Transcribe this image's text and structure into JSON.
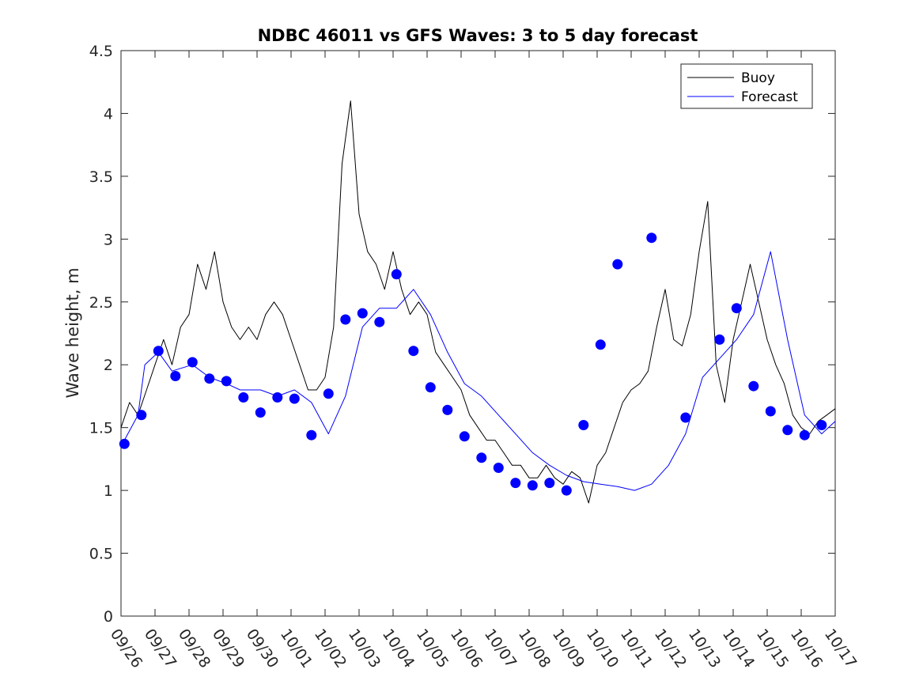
{
  "chart_data": {
    "type": "line",
    "title": "NDBC 46011 vs GFS Waves: 3 to 5 day forecast",
    "xlabel": "",
    "ylabel": "Wave height, m",
    "ylim": [
      0,
      4.5
    ],
    "yticks": [
      0,
      0.5,
      1,
      1.5,
      2,
      2.5,
      3,
      3.5,
      4,
      4.5
    ],
    "ytick_labels": [
      "0",
      "0.5",
      "1",
      "1.5",
      "2",
      "2.5",
      "3",
      "3.5",
      "4",
      "4.5"
    ],
    "xlim": [
      0,
      21
    ],
    "xtick_labels": [
      "09/26",
      "09/27",
      "09/28",
      "09/29",
      "09/30",
      "10/01",
      "10/02",
      "10/03",
      "10/04",
      "10/05",
      "10/06",
      "10/07",
      "10/08",
      "10/09",
      "10/10",
      "10/11",
      "10/12",
      "10/13",
      "10/14",
      "10/15",
      "10/16",
      "10/17"
    ],
    "legend": {
      "position": "top-right",
      "entries": [
        "Buoy",
        "Forecast"
      ]
    },
    "colors": {
      "buoy": "#000000",
      "forecast": "#0000ff",
      "axis": "#262626"
    },
    "series": [
      {
        "name": "Buoy",
        "x": [
          0,
          0.25,
          0.5,
          0.75,
          1,
          1.25,
          1.5,
          1.75,
          2,
          2.25,
          2.5,
          2.75,
          3,
          3.25,
          3.5,
          3.75,
          4,
          4.25,
          4.5,
          4.75,
          5,
          5.25,
          5.5,
          5.75,
          6,
          6.25,
          6.5,
          6.75,
          7,
          7.25,
          7.5,
          7.75,
          8,
          8.25,
          8.5,
          8.75,
          9,
          9.25,
          9.5,
          9.75,
          10,
          10.25,
          10.5,
          10.75,
          11,
          11.25,
          11.5,
          11.75,
          12,
          12.25,
          12.5,
          12.75,
          13,
          13.25,
          13.5,
          13.75,
          14,
          14.25,
          14.5,
          14.75,
          15,
          15.25,
          15.5,
          15.75,
          16,
          16.25,
          16.5,
          16.75,
          17,
          17.25,
          17.5,
          17.75,
          18,
          18.25,
          18.5,
          18.75,
          19,
          19.25,
          19.5,
          19.75,
          20,
          20.25,
          20.5,
          20.75,
          21
        ],
        "y": [
          1.5,
          1.7,
          1.6,
          1.8,
          2.0,
          2.2,
          2.0,
          2.3,
          2.4,
          2.8,
          2.6,
          2.9,
          2.5,
          2.3,
          2.2,
          2.3,
          2.2,
          2.4,
          2.5,
          2.4,
          2.2,
          2.0,
          1.8,
          1.8,
          1.9,
          2.3,
          3.6,
          4.1,
          3.2,
          2.9,
          2.8,
          2.6,
          2.9,
          2.6,
          2.4,
          2.5,
          2.4,
          2.1,
          2.0,
          1.9,
          1.8,
          1.6,
          1.5,
          1.4,
          1.4,
          1.3,
          1.2,
          1.2,
          1.1,
          1.1,
          1.2,
          1.1,
          1.05,
          1.15,
          1.1,
          0.9,
          1.2,
          1.3,
          1.5,
          1.7,
          1.8,
          1.85,
          1.95,
          2.3,
          2.6,
          2.2,
          2.15,
          2.4,
          2.9,
          3.3,
          2.0,
          1.7,
          2.2,
          2.5,
          2.8,
          2.5,
          2.2,
          2.0,
          1.85,
          1.6,
          1.5,
          1.45,
          1.55,
          1.6,
          1.65
        ]
      },
      {
        "name": "Forecast",
        "x": [
          0.1,
          0.5,
          0.7,
          1.1,
          1.5,
          2.1,
          2.6,
          3.1,
          3.5,
          4.1,
          4.6,
          5.1,
          5.6,
          6.1,
          6.6,
          7.1,
          7.6,
          8.1,
          8.6,
          9.1,
          9.6,
          10.1,
          10.6,
          11.1,
          11.6,
          12.1,
          12.6,
          13.1,
          13.6,
          14.1,
          14.6,
          15.1,
          15.6,
          16.1,
          16.6,
          17.1,
          17.6,
          18.1,
          18.6,
          19.1,
          19.6,
          20.1,
          20.6,
          21
        ],
        "y": [
          1.4,
          1.6,
          2.0,
          2.1,
          1.95,
          2.0,
          1.9,
          1.85,
          1.8,
          1.8,
          1.75,
          1.8,
          1.7,
          1.45,
          1.75,
          2.3,
          2.45,
          2.45,
          2.6,
          2.4,
          2.1,
          1.85,
          1.75,
          1.6,
          1.45,
          1.3,
          1.2,
          1.12,
          1.07,
          1.05,
          1.03,
          1.0,
          1.05,
          1.2,
          1.45,
          1.9,
          2.05,
          2.2,
          2.4,
          2.9,
          2.2,
          1.6,
          1.45,
          1.55
        ]
      }
    ],
    "markers": {
      "name": "Forecast points",
      "x": [
        0.1,
        0.6,
        1.1,
        1.6,
        2.1,
        2.6,
        3.1,
        3.6,
        4.1,
        4.6,
        5.1,
        5.6,
        6.1,
        6.6,
        7.1,
        7.6,
        8.1,
        8.6,
        9.1,
        9.6,
        10.1,
        10.6,
        11.1,
        11.6,
        12.1,
        12.6,
        13.1,
        13.6,
        14.1,
        14.6,
        15.6,
        16.6,
        17.6,
        18.1,
        18.6,
        19.1,
        19.6,
        20.1,
        20.6
      ],
      "y": [
        1.37,
        1.6,
        2.11,
        1.91,
        2.02,
        1.89,
        1.87,
        1.74,
        1.62,
        1.74,
        1.73,
        1.44,
        1.77,
        2.36,
        2.41,
        2.34,
        2.72,
        2.11,
        1.82,
        1.64,
        1.43,
        1.26,
        1.18,
        1.06,
        1.04,
        1.06,
        1.0,
        1.52,
        2.16,
        2.8,
        3.01,
        1.58,
        2.2,
        2.45,
        1.83,
        1.63,
        1.48,
        1.44,
        1.52
      ]
    }
  }
}
